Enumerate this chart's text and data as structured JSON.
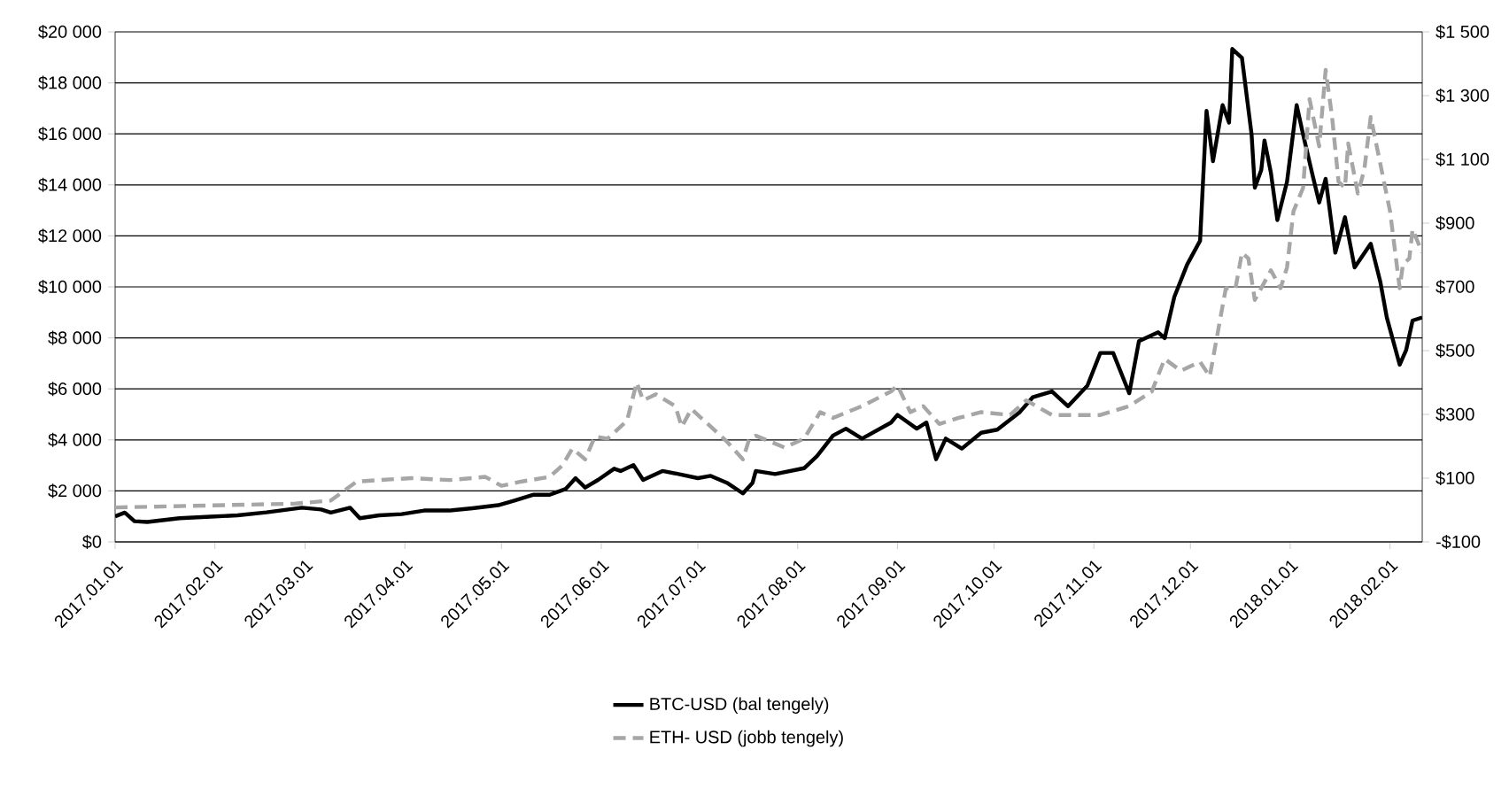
{
  "chart_data": {
    "type": "line",
    "marker": "none",
    "grid": "y",
    "legend": "bottom",
    "xlim": [
      "2017-01-01",
      "2018-02-11"
    ],
    "xticks": [
      {
        "value": "2017-01-01",
        "label": "2017.01.01"
      },
      {
        "value": "2017-02-01",
        "label": "2017.02.01"
      },
      {
        "value": "2017-03-01",
        "label": "2017.03.01"
      },
      {
        "value": "2017-04-01",
        "label": "2017.04.01"
      },
      {
        "value": "2017-05-01",
        "label": "2017.05.01"
      },
      {
        "value": "2017-06-01",
        "label": "2017.06.01"
      },
      {
        "value": "2017-07-01",
        "label": "2017.07.01"
      },
      {
        "value": "2017-08-01",
        "label": "2017.08.01"
      },
      {
        "value": "2017-09-01",
        "label": "2017.09.01"
      },
      {
        "value": "2017-10-01",
        "label": "2017.10.01"
      },
      {
        "value": "2017-11-01",
        "label": "2017.11.01"
      },
      {
        "value": "2017-12-01",
        "label": "2017.12.01"
      },
      {
        "value": "2018-01-01",
        "label": "2018.01.01"
      },
      {
        "value": "2018-02-01",
        "label": "2018.02.01"
      }
    ],
    "ylim": [
      0,
      20000
    ],
    "yticks": [
      {
        "value": 0,
        "label": "$0"
      },
      {
        "value": 2000,
        "label": "$2 000"
      },
      {
        "value": 4000,
        "label": "$4 000"
      },
      {
        "value": 6000,
        "label": "$6 000"
      },
      {
        "value": 8000,
        "label": "$8 000"
      },
      {
        "value": 10000,
        "label": "$10 000"
      },
      {
        "value": 12000,
        "label": "$12 000"
      },
      {
        "value": 14000,
        "label": "$14 000"
      },
      {
        "value": 16000,
        "label": "$16 000"
      },
      {
        "value": 18000,
        "label": "$18 000"
      },
      {
        "value": 20000,
        "label": "$20 000"
      }
    ],
    "y2lim": [
      -100,
      1500
    ],
    "y2ticks": [
      {
        "value": -100,
        "label": "-$100"
      },
      {
        "value": 100,
        "label": "$100"
      },
      {
        "value": 300,
        "label": "$300"
      },
      {
        "value": 500,
        "label": "$500"
      },
      {
        "value": 700,
        "label": "$700"
      },
      {
        "value": 900,
        "label": "$900"
      },
      {
        "value": 1100,
        "label": "$1 100"
      },
      {
        "value": 1300,
        "label": "$1 300"
      },
      {
        "value": 1500,
        "label": "$1 500"
      }
    ],
    "series": [
      {
        "name": "BTC-USD (bal tengely)",
        "color": "#000000",
        "line_style": "solid",
        "x": [
          "2017-01-01",
          "2017-01-04",
          "2017-01-07",
          "2017-01-11",
          "2017-01-21",
          "2017-02-01",
          "2017-02-08",
          "2017-02-17",
          "2017-02-28",
          "2017-03-06",
          "2017-03-09",
          "2017-03-15",
          "2017-03-18",
          "2017-03-24",
          "2017-03-31",
          "2017-04-07",
          "2017-04-15",
          "2017-04-22",
          "2017-04-30",
          "2017-05-05",
          "2017-05-11",
          "2017-05-16",
          "2017-05-21",
          "2017-05-24",
          "2017-05-27",
          "2017-05-31",
          "2017-06-05",
          "2017-06-07",
          "2017-06-11",
          "2017-06-14",
          "2017-06-20",
          "2017-06-25",
          "2017-07-01",
          "2017-07-05",
          "2017-07-10",
          "2017-07-15",
          "2017-07-18",
          "2017-07-19",
          "2017-07-25",
          "2017-08-03",
          "2017-08-07",
          "2017-08-12",
          "2017-08-16",
          "2017-08-21",
          "2017-08-30",
          "2017-09-01",
          "2017-09-07",
          "2017-09-10",
          "2017-09-13",
          "2017-09-16",
          "2017-09-21",
          "2017-09-27",
          "2017-10-02",
          "2017-10-09",
          "2017-10-13",
          "2017-10-19",
          "2017-10-24",
          "2017-10-30",
          "2017-11-03",
          "2017-11-07",
          "2017-11-12",
          "2017-11-15",
          "2017-11-21",
          "2017-11-23",
          "2017-11-26",
          "2017-11-30",
          "2017-12-04",
          "2017-12-06",
          "2017-12-08",
          "2017-12-11",
          "2017-12-13",
          "2017-12-14",
          "2017-12-17",
          "2017-12-20",
          "2017-12-21",
          "2017-12-23",
          "2017-12-24",
          "2017-12-26",
          "2017-12-28",
          "2017-12-31",
          "2018-01-03",
          "2018-01-05",
          "2018-01-08",
          "2018-01-10",
          "2018-01-12",
          "2018-01-15",
          "2018-01-18",
          "2018-01-21",
          "2018-01-26",
          "2018-01-29",
          "2018-01-31",
          "2018-02-04",
          "2018-02-06",
          "2018-02-08",
          "2018-02-11"
        ],
        "values": [
          1000,
          1150,
          810,
          780,
          930,
          1000,
          1040,
          1160,
          1340,
          1270,
          1150,
          1340,
          930,
          1040,
          1090,
          1230,
          1230,
          1320,
          1440,
          1620,
          1850,
          1850,
          2080,
          2500,
          2130,
          2430,
          2870,
          2780,
          3010,
          2430,
          2780,
          2660,
          2500,
          2590,
          2320,
          1900,
          2320,
          2780,
          2660,
          2890,
          3360,
          4170,
          4440,
          4050,
          4680,
          4980,
          4440,
          4680,
          3240,
          4050,
          3660,
          4280,
          4400,
          5090,
          5670,
          5900,
          5320,
          6130,
          7410,
          7410,
          5830,
          7870,
          8220,
          7990,
          9610,
          10880,
          11810,
          16900,
          14930,
          17130,
          16440,
          19330,
          18980,
          15970,
          13890,
          14580,
          15740,
          14470,
          12620,
          14120,
          17130,
          15970,
          14350,
          13310,
          14240,
          11340,
          12730,
          10760,
          11690,
          10190,
          8800,
          6950,
          7520,
          8680,
          8800
        ]
      },
      {
        "name": "ETH- USD (jobb tengely)",
        "color": "#a6a6a6",
        "line_style": "dashed",
        "axis": "y2",
        "x": [
          "2017-01-01",
          "2017-02-26",
          "2017-03-09",
          "2017-03-17",
          "2017-03-24",
          "2017-04-03",
          "2017-04-15",
          "2017-04-26",
          "2017-05-01",
          "2017-05-07",
          "2017-05-16",
          "2017-05-20",
          "2017-05-23",
          "2017-05-27",
          "2017-05-30",
          "2017-06-03",
          "2017-06-09",
          "2017-06-12",
          "2017-06-14",
          "2017-06-18",
          "2017-06-24",
          "2017-06-26",
          "2017-06-29",
          "2017-07-07",
          "2017-07-10",
          "2017-07-15",
          "2017-07-17",
          "2017-07-19",
          "2017-07-28",
          "2017-08-03",
          "2017-08-08",
          "2017-08-12",
          "2017-08-21",
          "2017-08-30",
          "2017-09-01",
          "2017-09-05",
          "2017-09-09",
          "2017-09-14",
          "2017-09-20",
          "2017-09-27",
          "2017-10-06",
          "2017-10-11",
          "2017-10-19",
          "2017-10-26",
          "2017-11-03",
          "2017-11-12",
          "2017-11-19",
          "2017-11-23",
          "2017-11-28",
          "2017-12-04",
          "2017-12-07",
          "2017-12-09",
          "2017-12-12",
          "2017-12-15",
          "2017-12-17",
          "2017-12-19",
          "2017-12-21",
          "2017-12-26",
          "2017-12-29",
          "2017-12-31",
          "2018-01-02",
          "2018-01-05",
          "2018-01-07",
          "2018-01-10",
          "2018-01-12",
          "2018-01-14",
          "2018-01-16",
          "2018-01-18",
          "2018-01-19",
          "2018-01-22",
          "2018-01-24",
          "2018-01-26",
          "2018-01-29",
          "2018-02-01",
          "2018-02-04",
          "2018-02-05",
          "2018-02-07",
          "2018-02-08",
          "2018-02-11"
        ],
        "values": [
          8,
          20,
          30,
          89,
          94,
          100,
          94,
          104,
          76,
          89,
          104,
          141,
          193,
          159,
          230,
          224,
          280,
          400,
          344,
          363,
          326,
          261,
          317,
          243,
          215,
          159,
          224,
          233,
          196,
          224,
          307,
          289,
          326,
          372,
          391,
          307,
          326,
          270,
          289,
          307,
          298,
          344,
          298,
          298,
          298,
          326,
          372,
          474,
          437,
          465,
          419,
          530,
          696,
          696,
          807,
          789,
          659,
          752,
          696,
          761,
          937,
          1011,
          1289,
          1141,
          1381,
          1233,
          1030,
          1011,
          1150,
          993,
          1067,
          1233,
          1085,
          937,
          696,
          770,
          789,
          881,
          807
        ]
      }
    ]
  }
}
